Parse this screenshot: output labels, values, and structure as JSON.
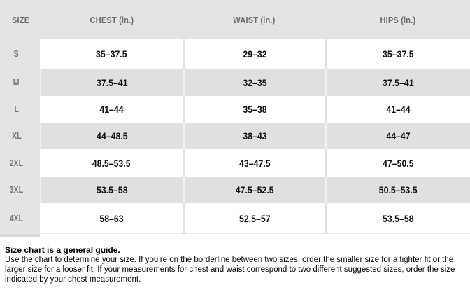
{
  "table": {
    "headers": [
      "SIZE",
      "CHEST (in.)",
      "WAIST (in.)",
      "HIPS (in.)"
    ],
    "rows": [
      {
        "size": "S",
        "chest": "35–37.5",
        "waist": "29–32",
        "hips": "35–37.5"
      },
      {
        "size": "M",
        "chest": "37.5–41",
        "waist": "32–35",
        "hips": "37.5–41"
      },
      {
        "size": "L",
        "chest": "41–44",
        "waist": "35–38",
        "hips": "41–44"
      },
      {
        "size": "XL",
        "chest": "44–48.5",
        "waist": "38–43",
        "hips": "44–47"
      },
      {
        "size": "2XL",
        "chest": "48.5–53.5",
        "waist": "43–47.5",
        "hips": "47–50.5"
      },
      {
        "size": "3XL",
        "chest": "53.5–58",
        "waist": "47.5–52.5",
        "hips": "50.5–53.5"
      },
      {
        "size": "4XL",
        "chest": "58–63",
        "waist": "52.5–57",
        "hips": "53.5–58"
      }
    ]
  },
  "footer": {
    "heading": "Size chart is a general guide.",
    "body": "Use the chart to determine your size. If you’re on the borderline between two sizes, order the smaller size for a tighter fit or the larger size for a looser fit. If your measurements for chest and waist correspond to two different suggested sizes, order the size indicated by your chest measurement."
  },
  "colors": {
    "header-bg": "#e3e3e3",
    "header-text": "#6e6e6e",
    "size-col-bg": "#e4e4e4",
    "size-text": "#757575",
    "row-gray": "#e0e0e0",
    "value-text": "#111111",
    "sep-on-white": "#e1e1e1",
    "sep-on-gray": "#f1f1f1"
  }
}
